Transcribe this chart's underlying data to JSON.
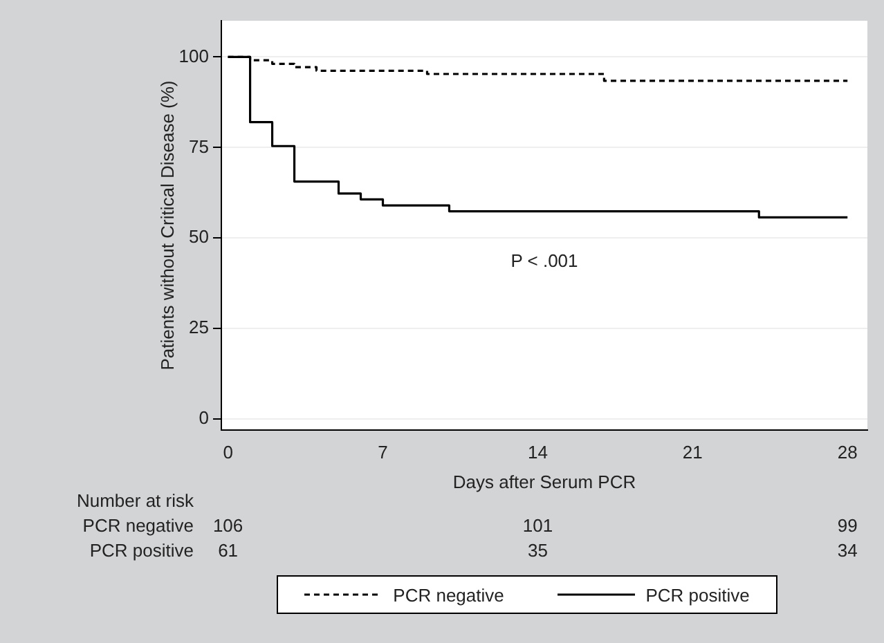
{
  "chart_data": {
    "type": "step",
    "xlabel": "Days after Serum PCR",
    "ylabel": "Patients without Critical Disease (%)",
    "series": [
      {
        "name": "PCR negative",
        "color": "#000000",
        "line_style": "dashed",
        "x": [
          0,
          1,
          2,
          3,
          4,
          9,
          17,
          28
        ],
        "values": [
          100,
          99.1,
          98.1,
          97.2,
          96.2,
          95.3,
          93.4,
          93.4
        ]
      },
      {
        "name": "PCR positive",
        "color": "#000000",
        "line_style": "solid",
        "x": [
          0,
          1,
          2,
          3,
          5,
          6,
          7,
          10,
          24,
          28
        ],
        "values": [
          100,
          82,
          75.4,
          65.6,
          62.3,
          60.7,
          59,
          57.4,
          55.7,
          55.7
        ]
      }
    ],
    "xlim": [
      -0.3,
      28.9
    ],
    "xticks": [
      0,
      7,
      14,
      21,
      28
    ],
    "ylim": [
      -3,
      110
    ],
    "yticks": [
      0,
      25,
      50,
      75,
      100
    ],
    "grid": "y",
    "legend": "bottom",
    "marker": "none",
    "annotations": [
      "P < .001",
      "Number at risk",
      "PCR negative",
      "106",
      "101",
      "99",
      "PCR positive",
      "61",
      "35",
      "34"
    ]
  }
}
